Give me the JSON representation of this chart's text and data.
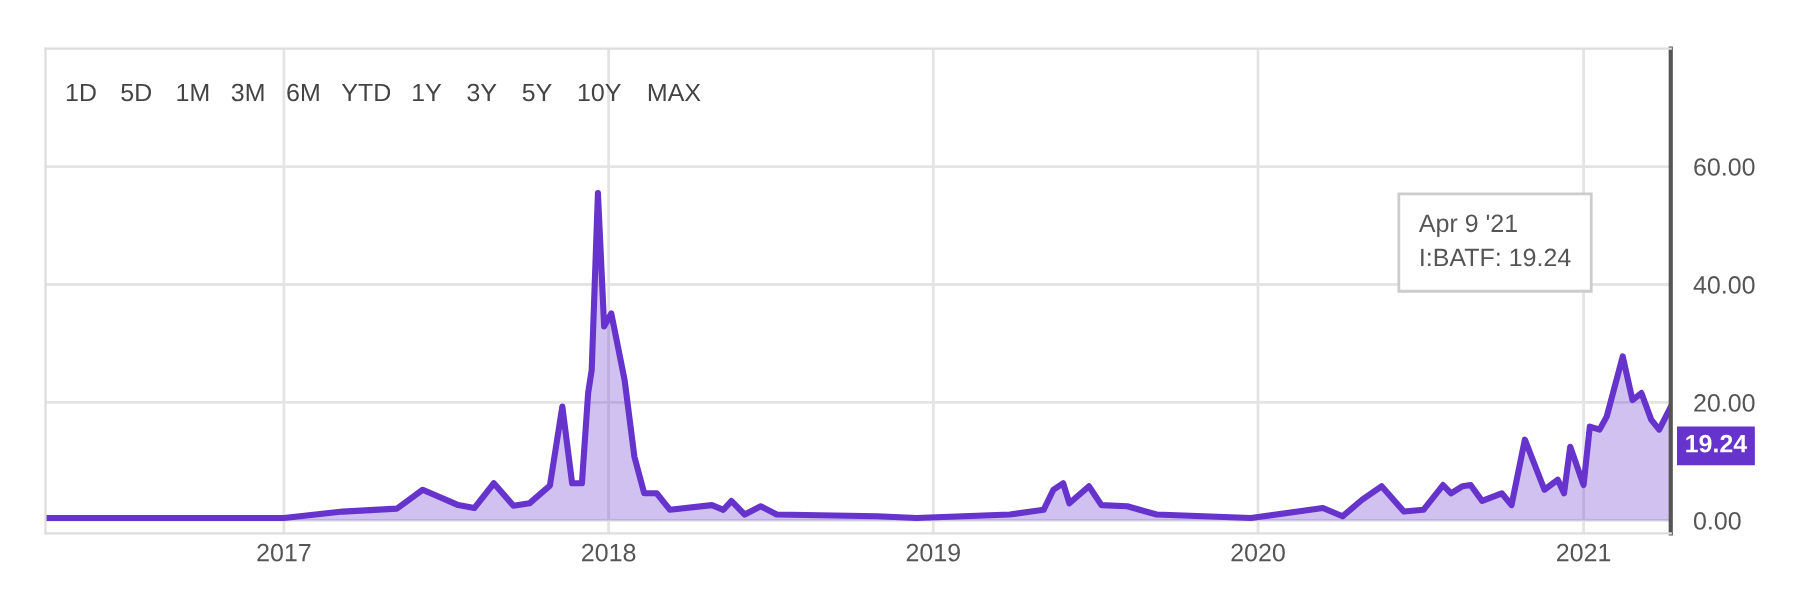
{
  "chart_data": {
    "type": "area",
    "x": [
      "2016-04-08",
      "2017-01-01",
      "2017-03-08",
      "2017-05-08",
      "2017-06-06",
      "2017-07-16",
      "2017-08-03",
      "2017-08-25",
      "2017-09-16",
      "2017-10-04",
      "2017-10-27",
      "2017-11-10",
      "2017-11-21",
      "2017-12-02",
      "2017-12-09",
      "2017-12-13",
      "2017-12-20",
      "2017-12-27",
      "2018-01-04",
      "2018-01-19",
      "2018-01-30",
      "2018-02-10",
      "2018-02-24",
      "2018-03-11",
      "2018-04-27",
      "2018-05-10",
      "2018-05-19",
      "2018-06-03",
      "2018-06-21",
      "2018-07-09",
      "2018-10-30",
      "2018-12-13",
      "2019-03-28",
      "2019-05-05",
      "2019-05-16",
      "2019-05-27",
      "2019-06-03",
      "2019-06-25",
      "2019-07-09",
      "2019-08-07",
      "2019-09-09",
      "2019-12-24",
      "2020-03-14",
      "2020-04-05",
      "2020-04-27",
      "2020-05-19",
      "2020-06-13",
      "2020-07-05",
      "2020-07-27",
      "2020-08-05",
      "2020-08-18",
      "2020-08-27",
      "2020-09-09",
      "2020-10-01",
      "2020-10-12",
      "2020-10-27",
      "2020-11-18",
      "2020-12-03",
      "2020-12-10",
      "2020-12-17",
      "2021-01-01",
      "2021-01-08",
      "2021-01-19",
      "2021-01-27",
      "2021-02-14",
      "2021-02-25",
      "2021-03-07",
      "2021-03-18",
      "2021-03-27",
      "2021-04-09"
    ],
    "series": [
      {
        "color": "#6633cc",
        "values": [
          0.4,
          0.4,
          1.5,
          2.0,
          5.2,
          2.6,
          2.1,
          6.3,
          2.5,
          2.9,
          5.9,
          19.3,
          6.3,
          6.3,
          21.6,
          25.5,
          55.5,
          32.9,
          35.1,
          23.8,
          10.8,
          4.6,
          4.6,
          1.8,
          2.6,
          1.8,
          3.3,
          1.0,
          2.4,
          1.0,
          0.7,
          0.4,
          1.0,
          1.8,
          5.2,
          6.3,
          2.9,
          5.8,
          2.6,
          2.4,
          1.0,
          0.4,
          2.1,
          0.7,
          3.5,
          5.8,
          1.5,
          1.8,
          6.0,
          4.6,
          5.8,
          6.0,
          3.3,
          4.6,
          2.6,
          13.7,
          5.2,
          6.9,
          4.6,
          12.5,
          6.0,
          15.9,
          15.4,
          17.6,
          27.8,
          20.4,
          21.6,
          17.1,
          15.4,
          19.24
        ]
      }
    ],
    "xlim": [
      "2016-04-08",
      "2021-04-09"
    ],
    "xticks": [
      "2017",
      "2018",
      "2019",
      "2020",
      "2021"
    ],
    "ylim": [
      -2.2,
      80
    ],
    "yticks": [
      {
        "value": 0,
        "label": "0.00"
      },
      {
        "value": 20,
        "label": "20.00"
      },
      {
        "value": 40,
        "label": "40.00"
      },
      {
        "value": 60,
        "label": "60.00"
      }
    ],
    "grid": true,
    "annotations": [
      "1D",
      "5D",
      "1M",
      "3M",
      "6M",
      "YTD",
      "1Y",
      "3Y",
      "5Y",
      "10Y",
      "MAX",
      "Apr 9 '21\nI:BATF: 19.24",
      {
        "text": "19.24",
        "x": "2021-04-09",
        "y": 19.24
      }
    ]
  }
}
